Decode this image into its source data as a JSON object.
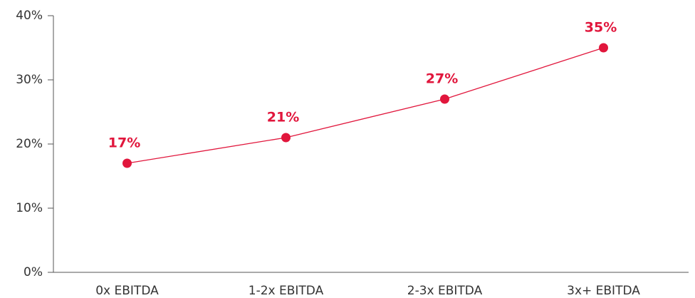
{
  "chart_data": {
    "type": "line",
    "categories": [
      "0x EBITDA",
      "1-2x EBITDA",
      "2-3x EBITDA",
      "3x+ EBITDA"
    ],
    "values": [
      17,
      21,
      27,
      35
    ],
    "value_labels": [
      "17%",
      "21%",
      "27%",
      "35%"
    ],
    "color": "#e1163c",
    "ylim": [
      0,
      40
    ],
    "yticks": [
      {
        "value": 0,
        "label": "0%"
      },
      {
        "value": 10,
        "label": "10%"
      },
      {
        "value": 20,
        "label": "20%"
      },
      {
        "value": 30,
        "label": "30%"
      },
      {
        "value": 40,
        "label": "40%"
      }
    ],
    "grid": false
  }
}
